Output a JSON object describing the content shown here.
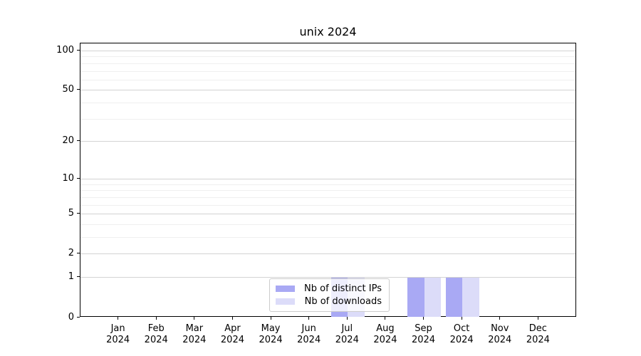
{
  "chart_data": {
    "type": "bar",
    "title": "unix 2024",
    "categories": [
      "Jan",
      "Feb",
      "Mar",
      "Apr",
      "May",
      "Jun",
      "Jul",
      "Aug",
      "Sep",
      "Oct",
      "Nov",
      "Dec"
    ],
    "year_label": "2024",
    "series": [
      {
        "name": "Nb of distinct IPs",
        "color": "#a9a9f4",
        "values": [
          0,
          0,
          0,
          0,
          0,
          0,
          1,
          0,
          1,
          1,
          0,
          0
        ]
      },
      {
        "name": "Nb of downloads",
        "color": "#dcdcf9",
        "values": [
          0,
          0,
          0,
          0,
          0,
          0,
          1,
          0,
          1,
          1,
          0,
          0
        ]
      }
    ],
    "yscale": "log1p",
    "ylim": [
      0,
      114
    ],
    "major_yticks": [
      0,
      1,
      2,
      5,
      10,
      20,
      50,
      100
    ],
    "minor_yticks": [
      3,
      4,
      6,
      7,
      8,
      9,
      30,
      40,
      60,
      70,
      80,
      90
    ],
    "grid": true,
    "legend_position": "lower center"
  },
  "colors": {
    "major_grid": "#d3d3d3",
    "minor_grid": "#efefef",
    "spine": "#000000",
    "text": "#000000",
    "legend_border": "#cccccc",
    "legend_background": "rgba(255,255,255,0.8)"
  }
}
